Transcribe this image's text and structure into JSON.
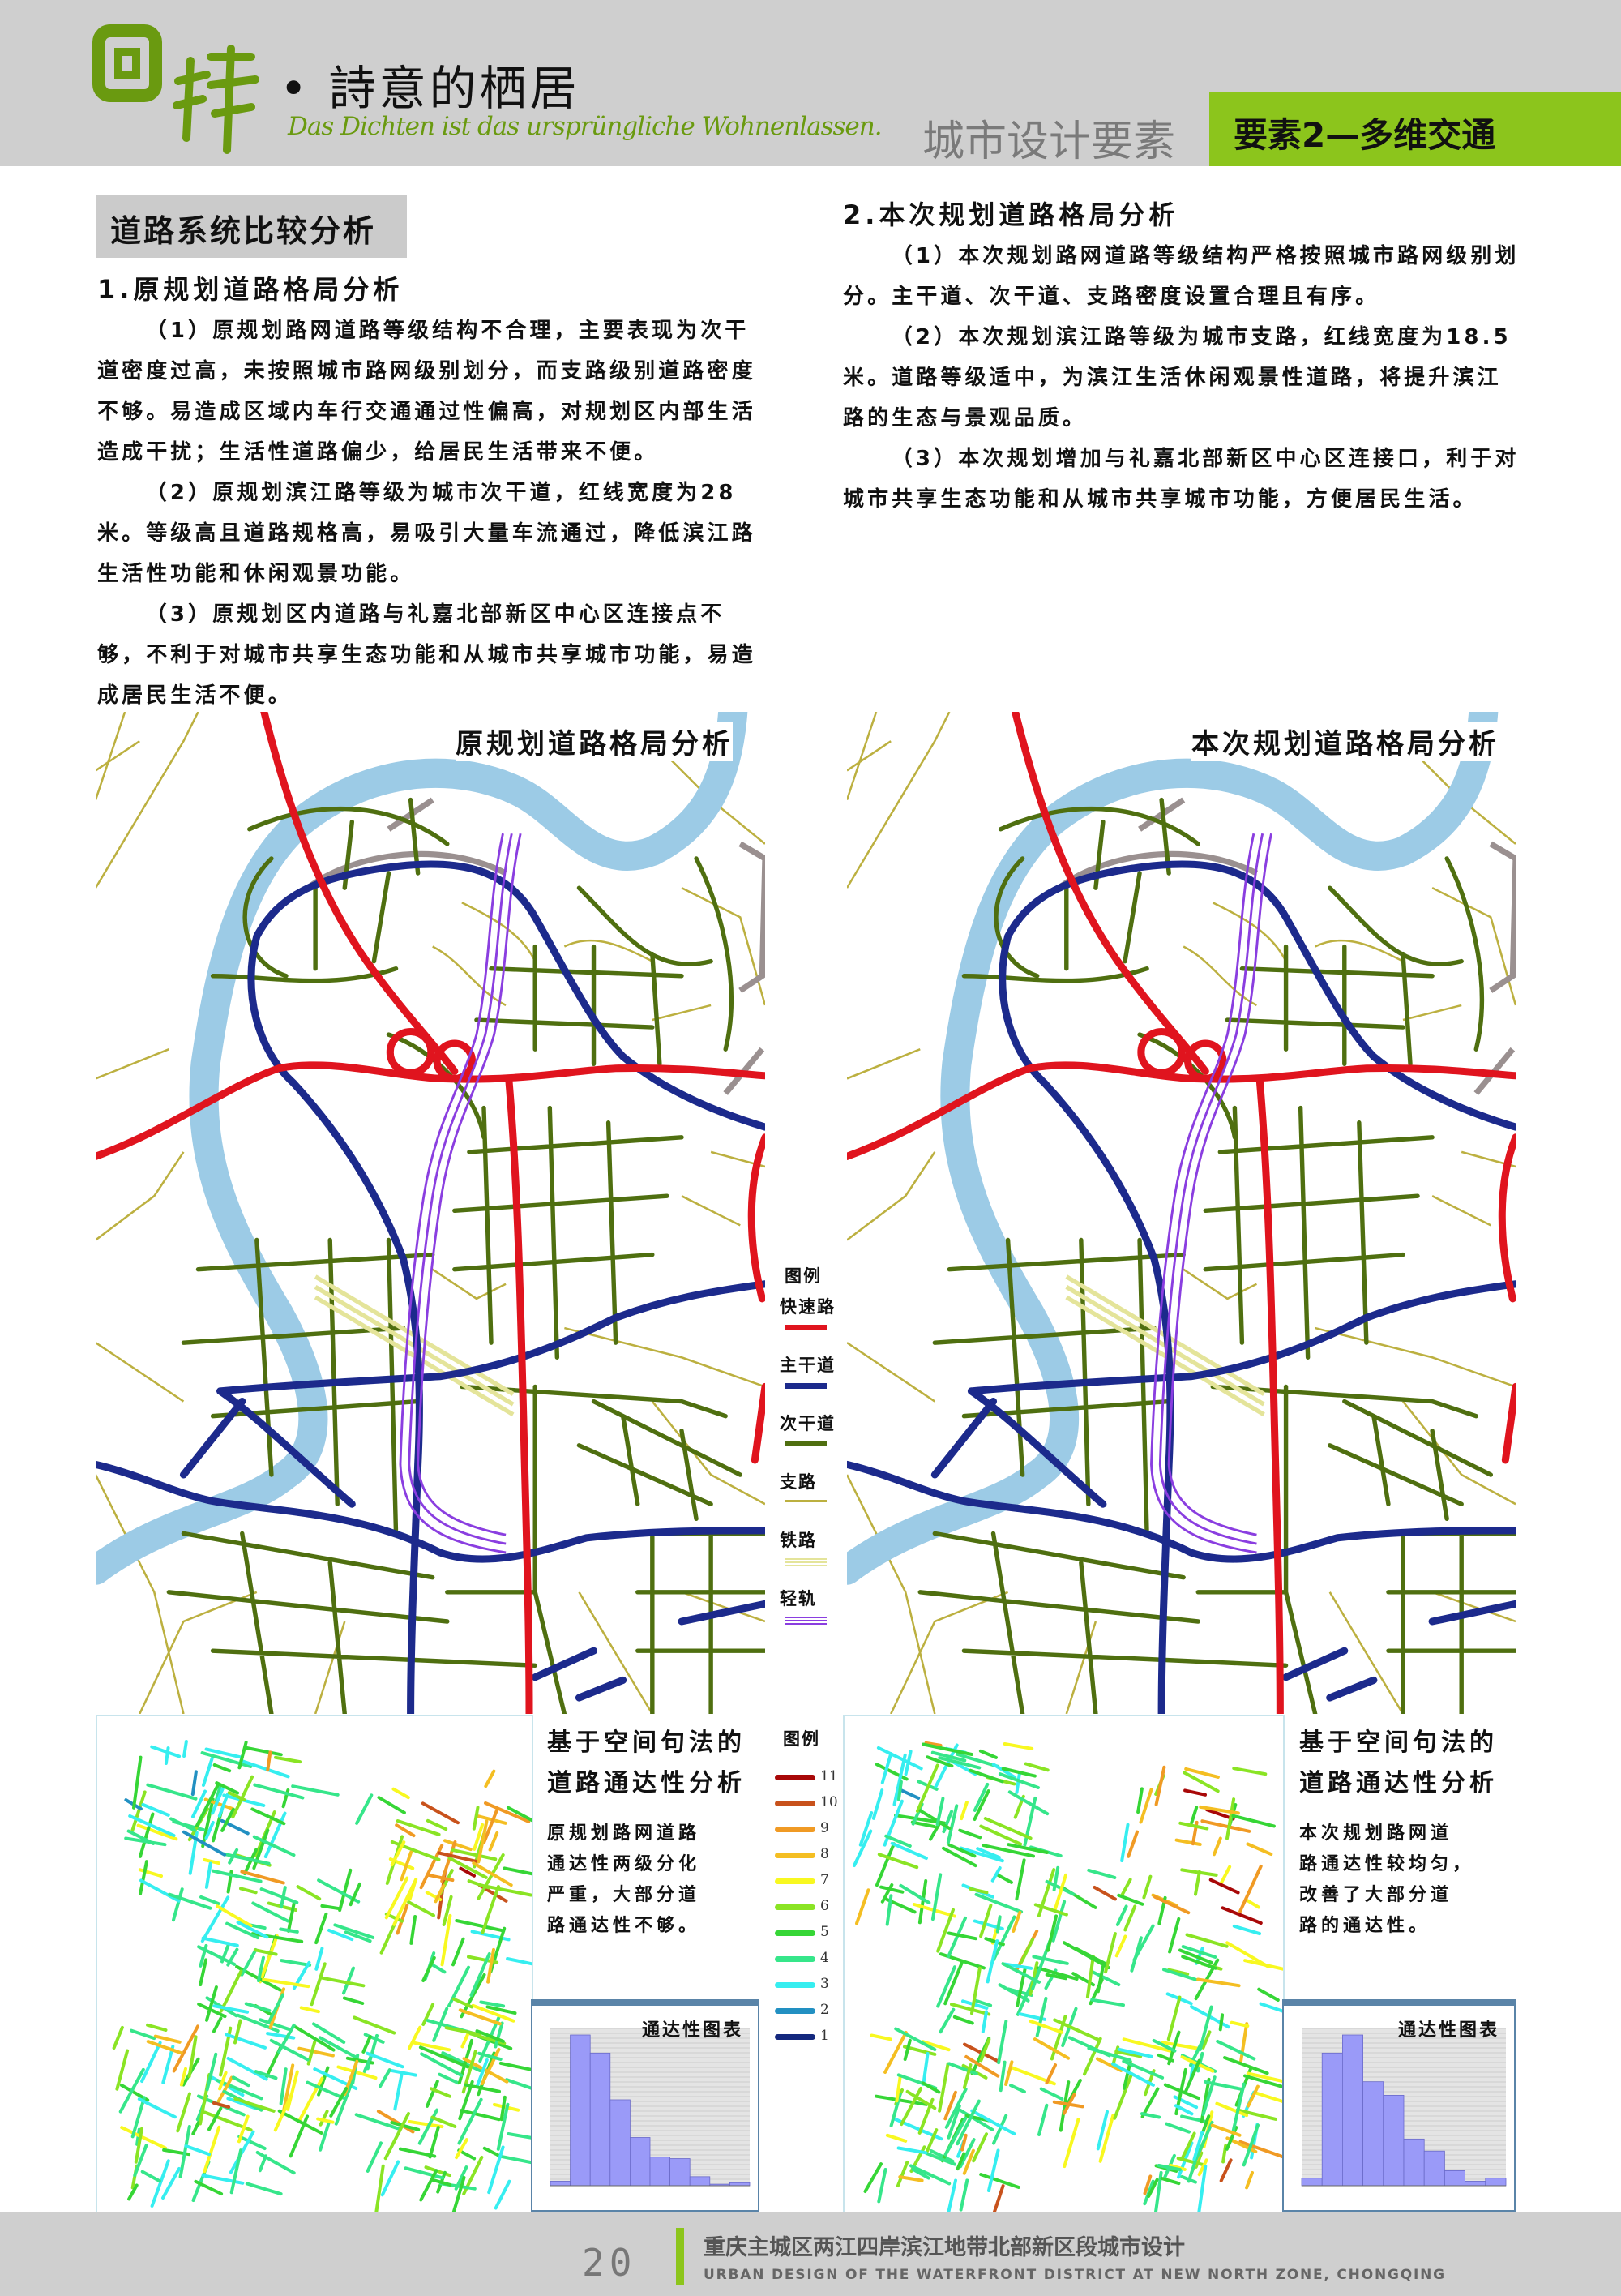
{
  "header": {
    "logo_text": "回歸",
    "slogan": "• 詩意的栖居",
    "script_line": "Das Dichten ist das ursprüngliche Wohnenlassen.",
    "section": "城市设计要素",
    "badge": "要素2—多维交通",
    "accent_color": "#8cc51c"
  },
  "left": {
    "heading": "道路系统比较分析",
    "subheading": "1.原规划道路格局分析",
    "paragraphs": [
      "（1）原规划路网道路等级结构不合理，主要表现为次干道密度过高，未按照城市路网级别划分，而支路级别道路密度不够。易造成区域内车行交通通过性偏高，对规划区内部生活造成干扰；生活性道路偏少，给居民生活带来不便。",
      "（2）原规划滨江路等级为城市次干道，红线宽度为28米。等级高且道路规格高，易吸引大量车流通过，降低滨江路生活性功能和休闲观景功能。",
      "（3）原规划区内道路与礼嘉北部新区中心区连接点不够，不利于对城市共享生态功能和从城市共享城市功能，易造成居民生活不便。"
    ],
    "map_title": "原规划道路格局分析",
    "ss_title_1": "基于空间句法的",
    "ss_title_2": "道路通达性分析",
    "ss_text": [
      "原规划路网道路",
      "通达性两级分化",
      "严重，大部分道",
      "路通达性不够。"
    ],
    "hist_title": "通达性图表"
  },
  "right": {
    "subheading": "2.本次规划道路格局分析",
    "paragraphs": [
      "（1）本次规划路网道路等级结构严格按照城市路网级别划分。主干道、次干道、支路密度设置合理且有序。",
      "（2）本次规划滨江路等级为城市支路，红线宽度为18.5米。道路等级适中，为滨江生活休闲观景性道路，将提升滨江路的生态与景观品质。",
      "（3）本次规划增加与礼嘉北部新区中心区连接口，利于对城市共享生态功能和从城市共享城市功能，方便居民生活。"
    ],
    "map_title": "本次规划道路格局分析",
    "ss_title_1": "基于空间句法的",
    "ss_title_2": "道路通达性分析",
    "ss_text": [
      "本次规划路网道",
      "路通达性较均匀，",
      "改善了大部分道",
      "路的通达性。"
    ],
    "hist_title": "通达性图表"
  },
  "road_legend": {
    "title": "图例",
    "items": [
      {
        "label": "快速路",
        "color": "#e0141e",
        "style": "thick"
      },
      {
        "label": "主干道",
        "color": "#1c2a8c",
        "style": "thick"
      },
      {
        "label": "次干道",
        "color": "#4f6f10",
        "style": "medium"
      },
      {
        "label": "支路",
        "color": "#bcb040",
        "style": "thin"
      },
      {
        "label": "铁路",
        "color": "#e4e49a",
        "style": "triple"
      },
      {
        "label": "轻轨",
        "color": "#8a3ee0",
        "style": "triple"
      }
    ],
    "river_color": "#9ccbe6"
  },
  "ss_legend": {
    "title": "图例",
    "items": [
      {
        "label": "11",
        "color": "#a80808"
      },
      {
        "label": "10",
        "color": "#c8521c"
      },
      {
        "label": "9",
        "color": "#f09a24"
      },
      {
        "label": "8",
        "color": "#f4be22"
      },
      {
        "label": "7",
        "color": "#f8f820"
      },
      {
        "label": "6",
        "color": "#8ae424"
      },
      {
        "label": "5",
        "color": "#36d636"
      },
      {
        "label": "4",
        "color": "#36e68a"
      },
      {
        "label": "3",
        "color": "#36eef0"
      },
      {
        "label": "2",
        "color": "#2290c2"
      },
      {
        "label": "1",
        "color": "#14287e"
      }
    ]
  },
  "chart_data": [
    {
      "type": "bar",
      "title": "通达性图表",
      "panel": "left",
      "values": [
        3,
        100,
        88,
        57,
        32,
        19,
        18,
        6,
        1,
        2
      ],
      "bar_color": "#9a9af8",
      "grid": true
    },
    {
      "type": "bar",
      "title": "通达性图表",
      "panel": "right",
      "values": [
        5,
        88,
        100,
        69,
        60,
        31,
        23,
        10,
        3,
        5
      ],
      "bar_color": "#9a9af8",
      "grid": true
    }
  ],
  "footer": {
    "page_number": "20",
    "title": "重庆主城区两江四岸滨江地带北部新区段城市设计",
    "subtitle": "URBAN DESIGN OF THE WATERFRONT DISTRICT AT NEW NORTH ZONE, CHONGQING"
  }
}
